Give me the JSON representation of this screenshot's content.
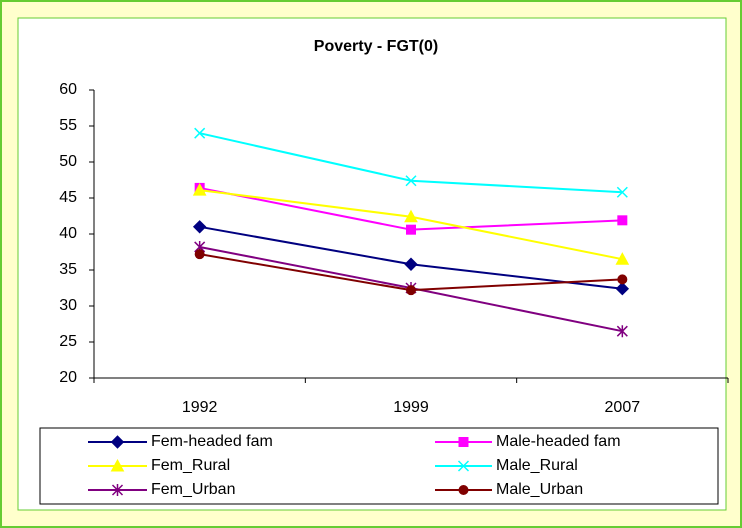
{
  "chart_data": {
    "type": "line",
    "title": "Poverty - FGT(0)",
    "categories": [
      "1992",
      "1999",
      "2007"
    ],
    "series": [
      {
        "name": "Fem-headed fam",
        "color": "#000080",
        "marker": "diamond",
        "values": [
          41.0,
          35.8,
          32.4
        ]
      },
      {
        "name": "Male-headed fam",
        "color": "#ff00ff",
        "marker": "square",
        "values": [
          46.4,
          40.6,
          41.9
        ]
      },
      {
        "name": "Fem_Rural",
        "color": "#ffff00",
        "marker": "triangle",
        "values": [
          46.1,
          42.4,
          36.5
        ]
      },
      {
        "name": "Male_Rural",
        "color": "#00ffff",
        "marker": "x",
        "values": [
          54.0,
          47.4,
          45.8
        ]
      },
      {
        "name": "Fem_Urban",
        "color": "#800080",
        "marker": "star",
        "values": [
          38.2,
          32.5,
          26.5
        ]
      },
      {
        "name": "Male_Urban",
        "color": "#800000",
        "marker": "circle",
        "values": [
          37.2,
          32.2,
          33.7
        ]
      }
    ],
    "ylim": [
      20,
      60
    ],
    "yticks": [
      20,
      25,
      30,
      35,
      40,
      45,
      50,
      55,
      60
    ],
    "grid": false,
    "legend": "bottom"
  }
}
